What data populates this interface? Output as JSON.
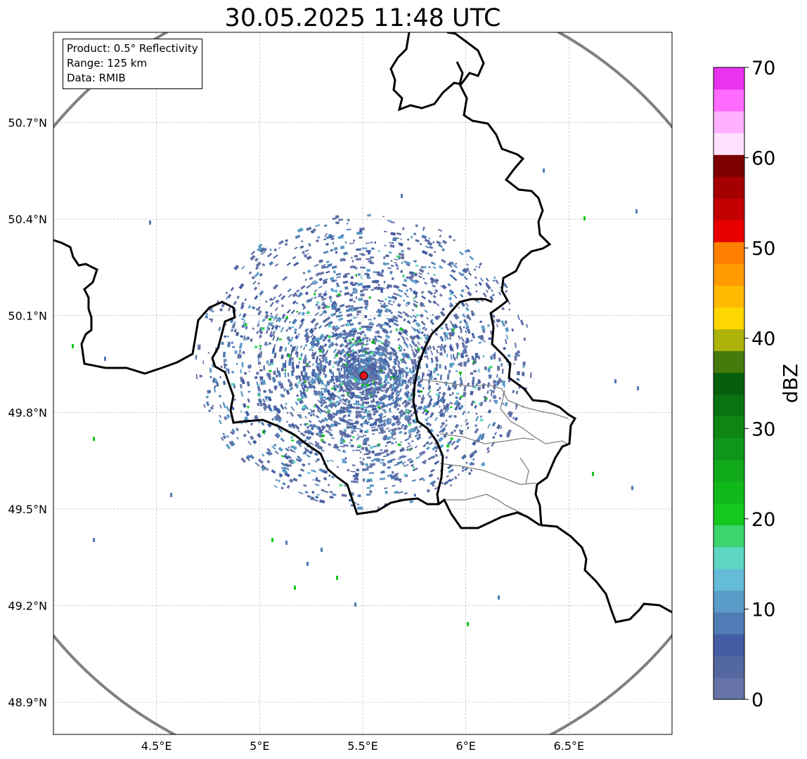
{
  "title": "30.05.2025 11:48 UTC",
  "info_box": {
    "product": "Product: 0.5° Reflectivity",
    "range": "Range: 125 km",
    "data": "Data: RMIB"
  },
  "map": {
    "lon_range": [
      4.0,
      7.0
    ],
    "lat_range": [
      48.8,
      50.98
    ],
    "lon_ticks": [
      {
        "value": 4.5,
        "label": "4.5°E"
      },
      {
        "value": 5.0,
        "label": "5°E"
      },
      {
        "value": 5.5,
        "label": "5.5°E"
      },
      {
        "value": 6.0,
        "label": "6°E"
      },
      {
        "value": 6.5,
        "label": "6.5°E"
      }
    ],
    "lat_ticks": [
      {
        "value": 50.7,
        "label": "50.7°N"
      },
      {
        "value": 50.4,
        "label": "50.4°N"
      },
      {
        "value": 50.1,
        "label": "50.1°N"
      },
      {
        "value": 49.8,
        "label": "49.8°N"
      },
      {
        "value": 49.5,
        "label": "49.5°N"
      },
      {
        "value": 49.2,
        "label": "49.2°N"
      },
      {
        "value": 48.9,
        "label": "48.9°N"
      }
    ],
    "radar_site": {
      "lon": 5.505,
      "lat": 49.914,
      "color": "#e8141c"
    },
    "range_ring_color": "#808080",
    "border_color": "#000000",
    "admin_border_color": "#808080",
    "grid": true
  },
  "colorbar": {
    "label": "dBZ",
    "min": 0,
    "max": 70,
    "tick_labels": [
      "0",
      "10",
      "20",
      "30",
      "40",
      "50",
      "60",
      "70"
    ],
    "colors": [
      "#6673a8",
      "#53689f",
      "#435ca3",
      "#4f7cb4",
      "#5a9bc7",
      "#64bcd9",
      "#5dd6c4",
      "#3dd56e",
      "#14c81e",
      "#11b81a",
      "#10a91a",
      "#0f961a",
      "#0e8615",
      "#0a7210",
      "#075f0c",
      "#457a0c",
      "#adb20b",
      "#ffd600",
      "#ffb900",
      "#ff9b00",
      "#ff7f00",
      "#e80000",
      "#c50000",
      "#a50000",
      "#7c0000",
      "#ffe0ff",
      "#ffb1ff",
      "#ff6aff",
      "#ea33ef"
    ]
  }
}
